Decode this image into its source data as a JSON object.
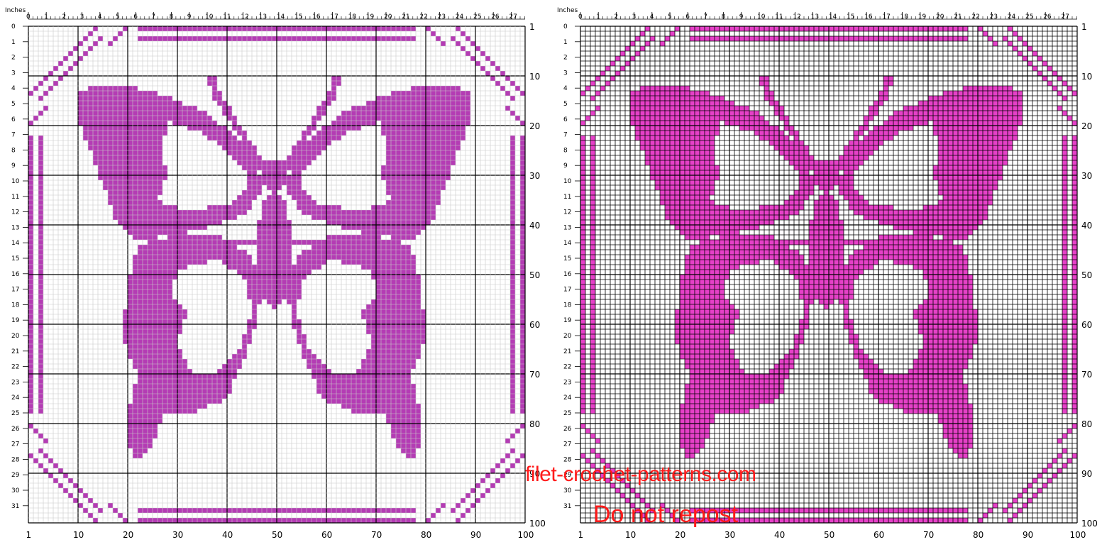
{
  "ruler_unit_label": "Inches",
  "inch_ticks": [
    "0",
    "1",
    "2",
    "3",
    "4",
    "5",
    "6",
    "7",
    "8",
    "9",
    "10",
    "11",
    "12",
    "13",
    "14",
    "15",
    "16",
    "17",
    "18",
    "19",
    "20",
    "21",
    "22",
    "23",
    "24",
    "25",
    "26",
    "27"
  ],
  "row_inch_labels": [
    "0",
    "1",
    "2",
    "3",
    "4",
    "5",
    "6",
    "7",
    "8",
    "9",
    "10",
    "11",
    "12",
    "13",
    "14",
    "15",
    "16",
    "17",
    "18",
    "19",
    "20",
    "21",
    "22",
    "23",
    "24",
    "25",
    "26",
    "27",
    "28",
    "29",
    "30",
    "31"
  ],
  "bottom_numbers": [
    "1",
    "10",
    "20",
    "30",
    "40",
    "50",
    "60",
    "70",
    "80",
    "90",
    "100"
  ],
  "right_numbers": [
    "1",
    "10",
    "20",
    "30",
    "40",
    "50",
    "60",
    "70",
    "80",
    "90",
    "100"
  ],
  "watermark": {
    "line1": "filet-crochet-patterns.com",
    "line2": "Do not repost"
  },
  "colors": {
    "filled": "#b43cb4",
    "filled_dark_chart": "#e640c8",
    "grid_light": "#c8c8c8",
    "grid_major": "#000000",
    "grid_dark_chart": "#000000",
    "watermark": "#ff1a1a"
  },
  "charts": [
    {
      "name": "light-grid-chart",
      "style": "light"
    },
    {
      "name": "dark-grid-chart",
      "style": "dark"
    }
  ]
}
